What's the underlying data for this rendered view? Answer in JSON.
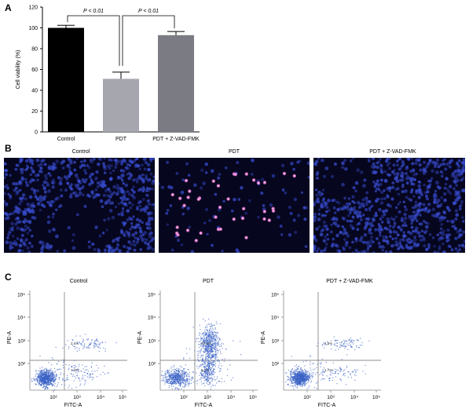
{
  "panels": {
    "a": {
      "letter": "A",
      "chart_data": {
        "type": "bar",
        "categories": [
          "Control",
          "PDT",
          "PDT + Z-VAD-FMK"
        ],
        "values": [
          100,
          51,
          93
        ],
        "errors": [
          2.5,
          6.5,
          3.5
        ],
        "ylabel": "Cell viability (%)",
        "ylim": [
          0,
          120
        ],
        "yticks": [
          0,
          20,
          40,
          60,
          80,
          100,
          120
        ],
        "bar_colors": [
          "#000000",
          "#a6a6ae",
          "#7b7b84"
        ],
        "annotations": [
          {
            "from": 0,
            "to": 1,
            "text": "P < 0.01"
          },
          {
            "from": 1,
            "to": 2,
            "text": "P < 0.01"
          }
        ]
      }
    },
    "b": {
      "letter": "B",
      "images": [
        {
          "label": "Control",
          "dot_color": "#3a4fd6",
          "pink": 0
        },
        {
          "label": "PDT",
          "dot_color": "#3a4fd6",
          "pink": 38
        },
        {
          "label": "PDT + Z-VAD-FMK",
          "dot_color": "#3a4fd6",
          "pink": 0
        }
      ]
    },
    "c": {
      "letter": "C",
      "xlabel": "FITC-A",
      "ylabel": "PE-A",
      "x_ticks": [
        "10²",
        "10³",
        "10⁴",
        "10⁵"
      ],
      "y_ticks": [
        "10²",
        "10³",
        "10⁴",
        "10⁵"
      ],
      "point_color": "#3b63c6",
      "plots": [
        {
          "title": "Control",
          "q2": "2.1%",
          "q4": "1.2%"
        },
        {
          "title": "PDT",
          "q2": "40.1%",
          "q4": "6.2%"
        },
        {
          "title": "PDT + Z-VAD-FMK",
          "q2": "4.0%",
          "q4": "1.7%"
        }
      ]
    }
  }
}
